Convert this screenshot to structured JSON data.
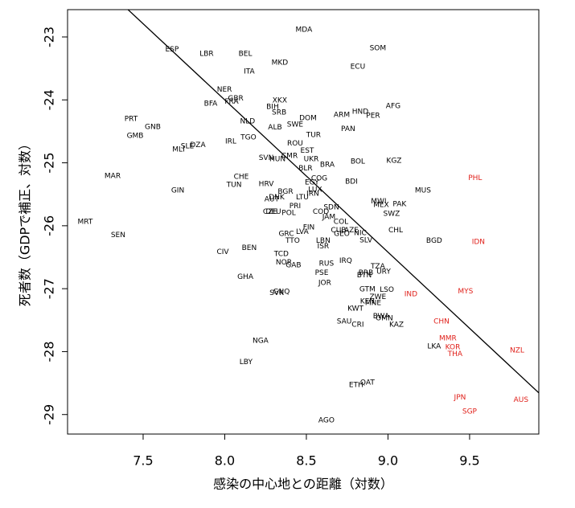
{
  "chart_data": {
    "type": "scatter",
    "xlabel": "感染の中心地との距離（対数）",
    "ylabel": "死者数（GDPで補正、対数）",
    "xlim": [
      7.037,
      9.924
    ],
    "ylim": [
      -29.31,
      -22.566
    ],
    "xticks": [
      7.5,
      {
        "value": 8,
        "label": "8.0"
      },
      8.5,
      {
        "value": 9,
        "label": "9.0"
      },
      9.5
    ],
    "yticks": [
      -29,
      -28,
      -27,
      -26,
      -25,
      -24,
      -23
    ],
    "fit": {
      "intercept": -4.64,
      "slope": -2.42,
      "color": "#000000"
    },
    "labels": [
      "MDA",
      "SOM",
      "ESP",
      "LBR",
      "BEL",
      "MKD",
      "ECU",
      "ITA",
      "NER",
      "GBR",
      "FRA",
      "BFA",
      "XKX",
      "BIH",
      "SRB",
      "HND",
      "AFG",
      "ARM",
      "PER",
      "DOM",
      "PRT",
      "NLD",
      "SWE",
      "ALB",
      "GNB",
      "PAN",
      "GMB",
      "TGO",
      "TUR",
      "IRL",
      "ROU",
      "DZA",
      "SLE",
      "MLI",
      "EST",
      "CMR",
      "SVN",
      "HUN",
      "UKR",
      "BOL",
      "KGZ",
      "BRA",
      "BLR",
      "MAR",
      "CHE",
      "HRV",
      "TUN",
      "COG",
      "EGY",
      "BDI",
      "PHL",
      "GIN",
      "MUS",
      "BGR",
      "LUX",
      "LTU",
      "IRN",
      "AUT",
      "DNK",
      "MWI",
      "MEX",
      "PAK",
      "PRI",
      "SDN",
      "CZE",
      "DEU",
      "POL",
      "COD",
      "SWZ",
      "JAM",
      "MRT",
      "COL",
      "FIN",
      "CUB",
      "AZE",
      "CHL",
      "LVA",
      "GEO",
      "NIC",
      "GRC",
      "SEN",
      "BGD",
      "IDN",
      "LBN",
      "TTO",
      "SLV",
      "ISR",
      "BEN",
      "CIV",
      "TCD",
      "NOR",
      "GAB",
      "RUS",
      "IRQ",
      "TZA",
      "BRB",
      "URY",
      "BTN",
      "PSE",
      "GHA",
      "JOR",
      "MYS",
      "IND",
      "SVK",
      "GNQ",
      "GTM",
      "KEN",
      "ZWE",
      "LSO",
      "MNE",
      "KWT",
      "BWA",
      "OMN",
      "KAZ",
      "SAU",
      "CRI",
      "CHN",
      "MMR",
      "KOR",
      "LKA",
      "THA",
      "NZL",
      "NGA",
      "LBY",
      "QAT",
      "ETH",
      "JPN",
      "AUS",
      "SGP",
      "AGO"
    ],
    "x": [
      8.485,
      8.938,
      7.677,
      7.889,
      8.126,
      8.337,
      8.815,
      8.15,
      7.998,
      8.067,
      8.042,
      7.914,
      8.337,
      8.293,
      8.333,
      8.83,
      9.032,
      8.717,
      8.909,
      8.51,
      7.426,
      8.14,
      8.431,
      8.308,
      7.559,
      8.756,
      7.451,
      8.145,
      8.544,
      8.037,
      8.431,
      7.835,
      7.771,
      7.717,
      8.505,
      8.397,
      8.254,
      8.323,
      8.53,
      8.815,
      9.037,
      8.628,
      8.495,
      7.313,
      8.101,
      8.254,
      8.057,
      8.579,
      8.534,
      8.776,
      9.534,
      7.712,
      9.214,
      8.372,
      8.554,
      8.475,
      8.539,
      8.288,
      8.318,
      8.943,
      8.958,
      9.071,
      8.431,
      8.653,
      8.278,
      8.298,
      8.392,
      8.589,
      9.022,
      8.638,
      7.145,
      8.712,
      8.515,
      8.697,
      8.776,
      9.047,
      8.475,
      8.717,
      8.83,
      8.377,
      7.347,
      9.283,
      9.554,
      8.603,
      8.416,
      8.865,
      8.603,
      8.15,
      7.988,
      8.347,
      8.362,
      8.421,
      8.623,
      8.741,
      8.938,
      8.865,
      8.973,
      8.855,
      8.594,
      8.126,
      8.613,
      9.475,
      9.14,
      8.318,
      8.347,
      8.874,
      8.874,
      8.938,
      8.993,
      8.909,
      8.801,
      8.958,
      8.978,
      9.052,
      8.732,
      8.815,
      9.328,
      9.367,
      9.397,
      9.283,
      9.411,
      9.791,
      8.219,
      8.13,
      8.874,
      8.805,
      9.441,
      9.815,
      9.5,
      8.623
    ],
    "y": [
      -22.885,
      -23.18,
      -23.2,
      -23.27,
      -23.27,
      -23.41,
      -23.47,
      -23.55,
      -23.84,
      -23.98,
      -24.03,
      -24.06,
      -24.01,
      -24.11,
      -24.2,
      -24.19,
      -24.1,
      -24.24,
      -24.25,
      -24.29,
      -24.3,
      -24.34,
      -24.39,
      -24.44,
      -24.43,
      -24.46,
      -24.57,
      -24.6,
      -24.56,
      -24.66,
      -24.69,
      -24.72,
      -24.74,
      -24.79,
      -24.81,
      -24.89,
      -24.92,
      -24.94,
      -24.94,
      -24.98,
      -24.97,
      -25.03,
      -25.09,
      -25.21,
      -25.22,
      -25.34,
      -25.35,
      -25.25,
      -25.31,
      -25.3,
      -25.24,
      -25.44,
      -25.44,
      -25.46,
      -25.43,
      -25.55,
      -25.49,
      -25.58,
      -25.55,
      -25.61,
      -25.67,
      -25.66,
      -25.69,
      -25.71,
      -25.78,
      -25.78,
      -25.8,
      -25.78,
      -25.81,
      -25.86,
      -25.94,
      -25.94,
      -26.03,
      -26.07,
      -26.07,
      -26.07,
      -26.1,
      -26.13,
      -26.12,
      -26.13,
      -26.15,
      -26.24,
      -26.26,
      -26.24,
      -26.24,
      -26.23,
      -26.33,
      -26.35,
      -26.42,
      -26.45,
      -26.58,
      -26.63,
      -26.6,
      -26.56,
      -26.65,
      -26.75,
      -26.73,
      -26.79,
      -26.75,
      -26.81,
      -26.91,
      -27.04,
      -27.09,
      -27.07,
      -27.05,
      -27.01,
      -27.2,
      -27.13,
      -27.02,
      -27.23,
      -27.32,
      -27.44,
      -27.47,
      -27.57,
      -27.52,
      -27.57,
      -27.52,
      -27.79,
      -27.93,
      -27.92,
      -28.04,
      -27.98,
      -27.83,
      -28.17,
      -28.49,
      -28.53,
      -28.73,
      -28.77,
      -28.95,
      -29.09
    ],
    "colors": [
      "#000000",
      "#000000",
      "#000000",
      "#000000",
      "#000000",
      "#000000",
      "#000000",
      "#000000",
      "#000000",
      "#000000",
      "#000000",
      "#000000",
      "#000000",
      "#000000",
      "#000000",
      "#000000",
      "#000000",
      "#000000",
      "#000000",
      "#000000",
      "#000000",
      "#000000",
      "#000000",
      "#000000",
      "#000000",
      "#000000",
      "#000000",
      "#000000",
      "#000000",
      "#000000",
      "#000000",
      "#000000",
      "#000000",
      "#000000",
      "#000000",
      "#000000",
      "#000000",
      "#000000",
      "#000000",
      "#000000",
      "#000000",
      "#000000",
      "#000000",
      "#000000",
      "#000000",
      "#000000",
      "#000000",
      "#000000",
      "#000000",
      "#000000",
      "#e0211b",
      "#000000",
      "#000000",
      "#000000",
      "#000000",
      "#000000",
      "#000000",
      "#000000",
      "#000000",
      "#000000",
      "#000000",
      "#000000",
      "#000000",
      "#000000",
      "#000000",
      "#000000",
      "#000000",
      "#000000",
      "#000000",
      "#000000",
      "#000000",
      "#000000",
      "#000000",
      "#000000",
      "#000000",
      "#000000",
      "#000000",
      "#000000",
      "#000000",
      "#000000",
      "#000000",
      "#000000",
      "#e0211b",
      "#000000",
      "#000000",
      "#000000",
      "#000000",
      "#000000",
      "#000000",
      "#000000",
      "#000000",
      "#000000",
      "#000000",
      "#000000",
      "#000000",
      "#000000",
      "#000000",
      "#000000",
      "#000000",
      "#000000",
      "#000000",
      "#e0211b",
      "#e0211b",
      "#000000",
      "#000000",
      "#000000",
      "#000000",
      "#000000",
      "#000000",
      "#000000",
      "#000000",
      "#000000",
      "#000000",
      "#000000",
      "#000000",
      "#000000",
      "#e0211b",
      "#e0211b",
      "#e0211b",
      "#000000",
      "#e0211b",
      "#e0211b",
      "#000000",
      "#000000",
      "#000000",
      "#000000",
      "#e0211b",
      "#e0211b",
      "#e0211b",
      "#000000"
    ]
  }
}
